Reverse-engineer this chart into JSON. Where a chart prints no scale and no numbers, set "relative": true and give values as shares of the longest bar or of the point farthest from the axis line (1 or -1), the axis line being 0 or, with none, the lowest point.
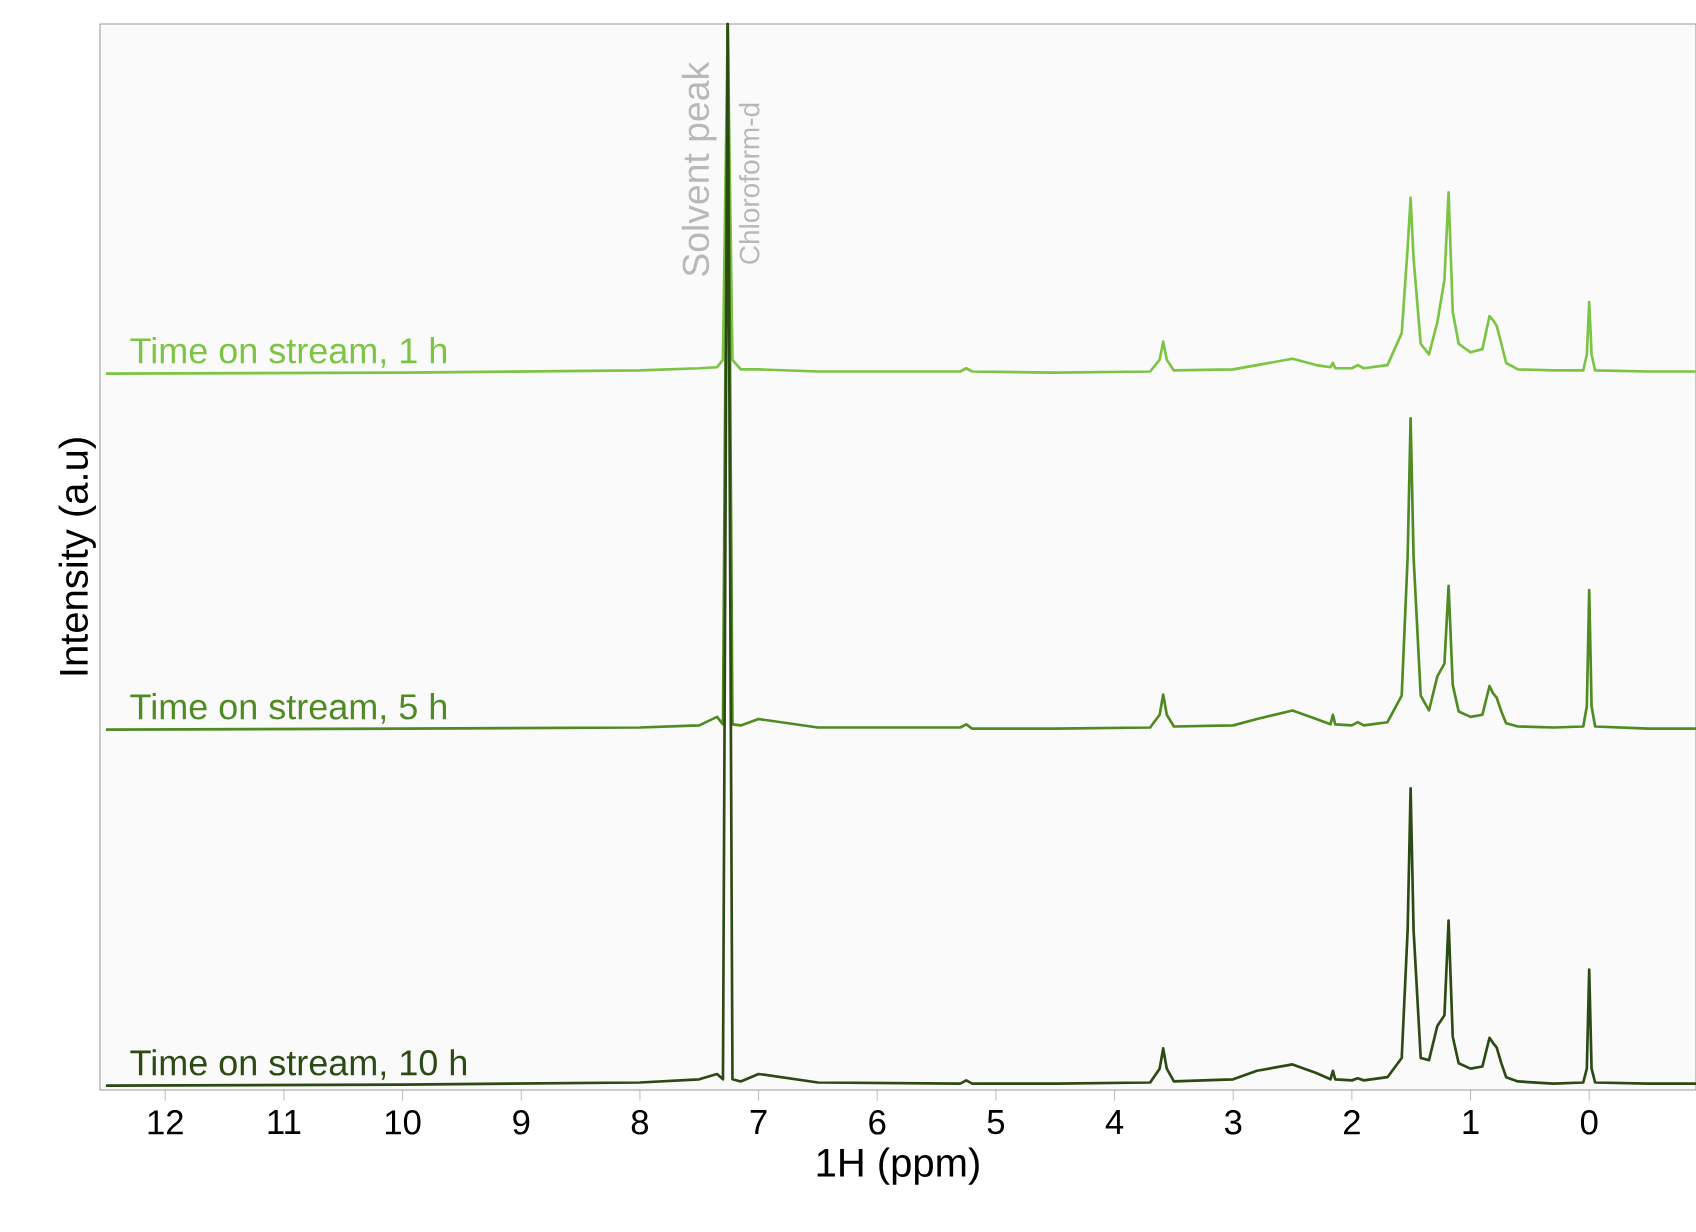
{
  "chart_data": {
    "type": "line",
    "relative": true,
    "xlabel": "1H (ppm)",
    "ylabel": "Intensity (a.u)",
    "xlim": [
      12.55,
      -0.9
    ],
    "xticks": [
      12,
      11,
      10,
      9,
      8,
      7,
      6,
      5,
      4,
      3,
      2,
      1,
      0
    ],
    "grid": false,
    "marker": "none",
    "line_style": "solid",
    "x": [
      12.5,
      10,
      8,
      7.5,
      7.35,
      7.3,
      7.26,
      7.22,
      7.15,
      7.0,
      6.5,
      5.3,
      5.25,
      5.2,
      4.5,
      3.7,
      3.62,
      3.59,
      3.56,
      3.5,
      3.0,
      2.8,
      2.5,
      2.3,
      2.18,
      2.16,
      2.14,
      2.0,
      1.95,
      1.9,
      1.7,
      1.58,
      1.53,
      1.505,
      1.48,
      1.42,
      1.35,
      1.28,
      1.22,
      1.185,
      1.15,
      1.1,
      1.0,
      0.9,
      0.84,
      0.81,
      0.78,
      0.74,
      0.7,
      0.6,
      0.3,
      0.05,
      0.02,
      0.0,
      -0.02,
      -0.05,
      -0.5,
      -0.9
    ],
    "series": [
      {
        "name": "Time on stream, 1 h",
        "color": "#7cc444",
        "values": [
          0.672,
          0.673,
          0.675,
          0.677,
          0.678,
          0.685,
          1.0,
          0.685,
          0.676,
          0.676,
          0.674,
          0.674,
          0.677,
          0.674,
          0.673,
          0.674,
          0.685,
          0.702,
          0.685,
          0.675,
          0.676,
          0.68,
          0.686,
          0.68,
          0.678,
          0.682,
          0.677,
          0.677,
          0.68,
          0.677,
          0.68,
          0.71,
          0.79,
          0.837,
          0.78,
          0.7,
          0.69,
          0.72,
          0.76,
          0.842,
          0.73,
          0.7,
          0.692,
          0.695,
          0.726,
          0.722,
          0.717,
          0.7,
          0.682,
          0.676,
          0.675,
          0.675,
          0.69,
          0.739,
          0.69,
          0.675,
          0.674,
          0.674
        ]
      },
      {
        "name": "Time on stream, 5 h",
        "color": "#4f8a22",
        "values": [
          0.338,
          0.339,
          0.34,
          0.342,
          0.35,
          0.343,
          1.0,
          0.343,
          0.342,
          0.348,
          0.34,
          0.34,
          0.343,
          0.339,
          0.339,
          0.34,
          0.352,
          0.371,
          0.352,
          0.341,
          0.342,
          0.348,
          0.356,
          0.348,
          0.343,
          0.352,
          0.343,
          0.342,
          0.345,
          0.342,
          0.345,
          0.37,
          0.5,
          0.63,
          0.5,
          0.37,
          0.356,
          0.388,
          0.4,
          0.473,
          0.38,
          0.355,
          0.35,
          0.352,
          0.379,
          0.372,
          0.368,
          0.355,
          0.344,
          0.341,
          0.34,
          0.341,
          0.36,
          0.469,
          0.36,
          0.341,
          0.339,
          0.339
        ]
      },
      {
        "name": "Time on stream, 10 h",
        "color": "#2c4a14",
        "values": [
          0.004,
          0.005,
          0.007,
          0.01,
          0.015,
          0.01,
          1.0,
          0.01,
          0.008,
          0.015,
          0.007,
          0.006,
          0.009,
          0.006,
          0.006,
          0.007,
          0.02,
          0.039,
          0.02,
          0.008,
          0.01,
          0.018,
          0.024,
          0.016,
          0.01,
          0.018,
          0.01,
          0.009,
          0.011,
          0.009,
          0.012,
          0.03,
          0.15,
          0.283,
          0.15,
          0.03,
          0.028,
          0.06,
          0.07,
          0.159,
          0.05,
          0.025,
          0.02,
          0.022,
          0.049,
          0.044,
          0.04,
          0.025,
          0.012,
          0.008,
          0.006,
          0.007,
          0.02,
          0.113,
          0.02,
          0.007,
          0.006,
          0.006
        ]
      }
    ],
    "annotations": [
      {
        "text": "Solvent peak",
        "x": 7.26,
        "y": 1.0
      },
      {
        "text": "Chloroform-d",
        "x": 7.26,
        "y": 1.0
      }
    ]
  }
}
